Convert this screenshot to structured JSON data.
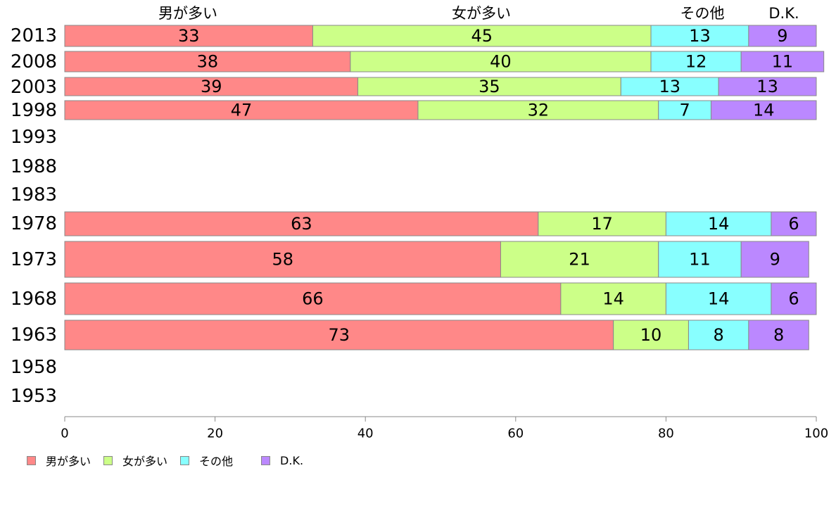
{
  "chart_data": {
    "type": "bar",
    "orientation": "horizontal",
    "stacked": true,
    "categories": [
      "2013",
      "2008",
      "2003",
      "1998",
      "1993",
      "1988",
      "1983",
      "1978",
      "1973",
      "1968",
      "1963",
      "1958",
      "1953"
    ],
    "series": [
      {
        "name": "男が多い",
        "color": "#ff8888",
        "values": [
          33,
          38,
          39,
          47,
          null,
          null,
          null,
          63,
          58,
          66,
          73,
          null,
          null
        ]
      },
      {
        "name": "女が多い",
        "color": "#ccff88",
        "values": [
          45,
          40,
          35,
          32,
          null,
          null,
          null,
          17,
          21,
          14,
          10,
          null,
          null
        ]
      },
      {
        "name": "その他",
        "color": "#88ffff",
        "values": [
          13,
          12,
          13,
          7,
          null,
          null,
          null,
          14,
          11,
          14,
          8,
          null,
          null
        ]
      },
      {
        "name": "D.K.",
        "color": "#bb88ff",
        "values": [
          9,
          11,
          13,
          14,
          null,
          null,
          null,
          6,
          9,
          6,
          8,
          null,
          null
        ]
      }
    ],
    "xlim": [
      0,
      100
    ],
    "xticks": [
      0,
      20,
      40,
      60,
      80,
      100
    ],
    "top_labels": [
      "男が多い",
      "女が多い",
      "その他",
      "D.K."
    ],
    "legend_position": "bottom-left",
    "grid": false
  }
}
